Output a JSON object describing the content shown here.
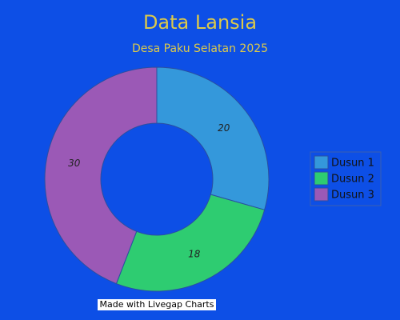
{
  "chart_data": {
    "type": "doughnut",
    "title": "Data Lansia",
    "subtitle": "Desa Paku Selatan 2025",
    "categories": [
      "Dusun 1",
      "Dusun 2",
      "Dusun 3"
    ],
    "values": [
      20,
      18,
      30
    ],
    "colors": [
      "#3498db",
      "#2ecc71",
      "#9b59b6"
    ],
    "legend": "right",
    "footer": "Made with Livegap Charts"
  }
}
